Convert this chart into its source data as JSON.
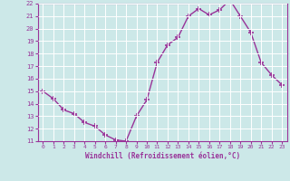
{
  "x": [
    0,
    1,
    2,
    3,
    4,
    5,
    6,
    7,
    8,
    9,
    10,
    11,
    12,
    13,
    14,
    15,
    16,
    17,
    18,
    19,
    20,
    21,
    22,
    23
  ],
  "y": [
    15.0,
    14.4,
    13.5,
    13.2,
    12.5,
    12.2,
    11.5,
    11.1,
    11.0,
    13.0,
    14.3,
    17.3,
    18.7,
    19.3,
    21.0,
    21.6,
    21.1,
    21.5,
    22.3,
    21.0,
    19.7,
    17.3,
    16.3,
    15.5
  ],
  "xlabel": "Windchill (Refroidissement éolien,°C)",
  "ylim": [
    11,
    22
  ],
  "xlim": [
    -0.5,
    23.5
  ],
  "yticks": [
    11,
    12,
    13,
    14,
    15,
    16,
    17,
    18,
    19,
    20,
    21,
    22
  ],
  "xticks": [
    0,
    1,
    2,
    3,
    4,
    5,
    6,
    7,
    8,
    9,
    10,
    11,
    12,
    13,
    14,
    15,
    16,
    17,
    18,
    19,
    20,
    21,
    22,
    23
  ],
  "line_color": "#993399",
  "marker_color": "#993399",
  "bg_color": "#cce8e8",
  "grid_color": "#b0d8d8",
  "label_color": "#993399",
  "tick_color": "#993399",
  "spine_color": "#993399"
}
